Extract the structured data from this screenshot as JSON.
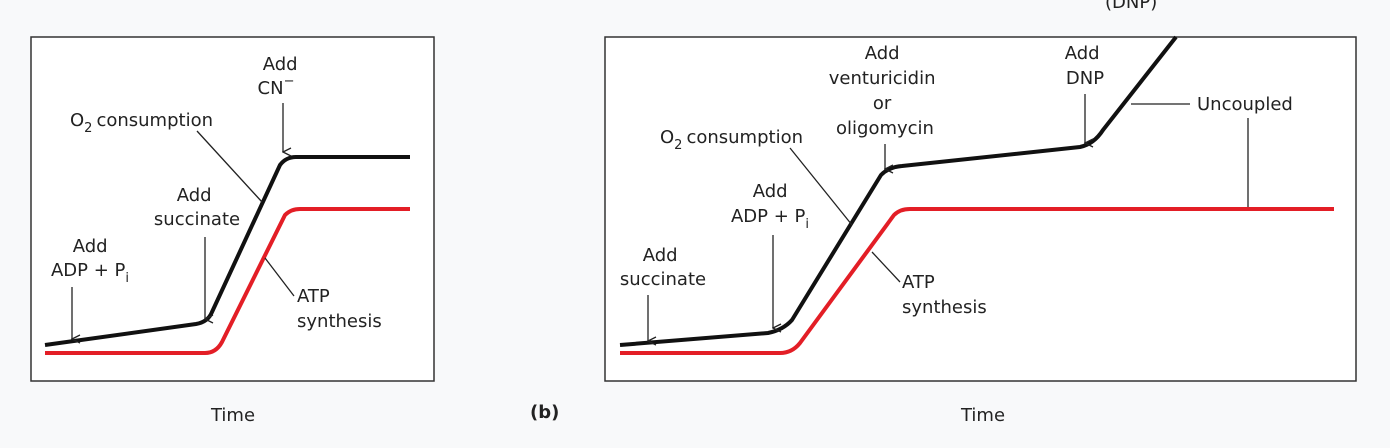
{
  "colors": {
    "background": "#f8f9fa",
    "panel_fill": "#ffffff",
    "panel_border": "#333333",
    "o2_curve": "#111111",
    "atp_curve": "#e31e26",
    "text": "#222222"
  },
  "panel_a": {
    "annotations": {
      "add_cn": [
        "Add",
        "CN"
      ],
      "cn_charge": "−",
      "o2": "O",
      "o2_sub": "2",
      "o2_rest": "consumption",
      "add_succinate": [
        "Add",
        "succinate"
      ],
      "add_adp": [
        "Add",
        "ADP + P"
      ],
      "adp_sub": "i",
      "atp": [
        "ATP",
        "synthesis"
      ]
    },
    "xlabel": "Time"
  },
  "panel_b": {
    "label": "(b)",
    "top_cut_label": "(DNP)",
    "annotations": {
      "add_vent": [
        "Add",
        "venturicidin",
        "or",
        "oligomycin"
      ],
      "add_dnp": [
        "Add",
        "DNP"
      ],
      "uncoupled": "Uncoupled",
      "o2": "O",
      "o2_sub": "2",
      "o2_rest": "consumption",
      "add_adp": [
        "Add",
        "ADP + P"
      ],
      "adp_sub": "i",
      "add_succinate": [
        "Add",
        "succinate"
      ],
      "atp": [
        "ATP",
        "synthesis"
      ]
    },
    "xlabel": "Time"
  }
}
